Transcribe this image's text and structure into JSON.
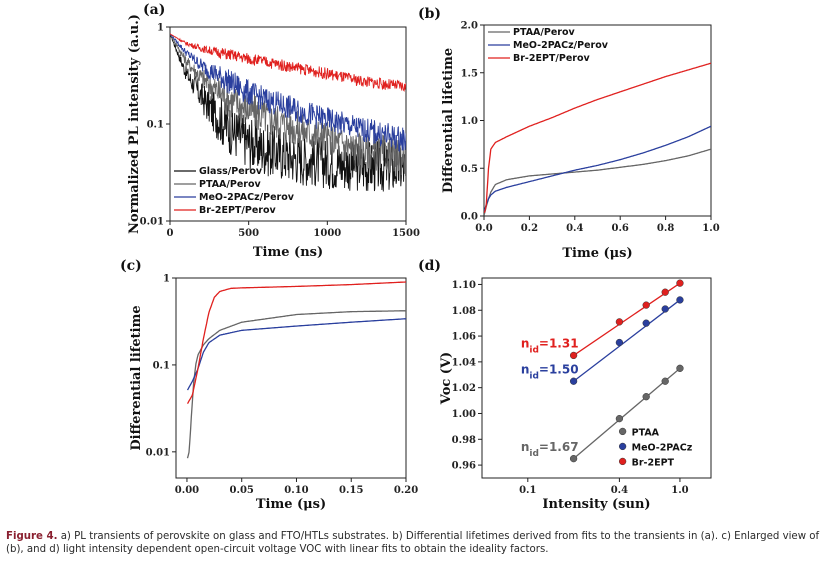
{
  "caption": {
    "label": "Figure 4.",
    "text": "a) PL transients of perovskite on glass and FTO/HTLs substrates. b) Differential lifetimes derived from fits to the transients in (a). c) Enlarged view of (b), and d) light intensity dependent open-circuit voltage VOC with linear fits to obtain the ideality factors."
  },
  "colors": {
    "glass": "#111111",
    "ptaa": "#666666",
    "meo": "#2a3f9e",
    "br": "#e0201e"
  },
  "chart_data": [
    {
      "panel": "(a)",
      "type": "line",
      "xlabel": "Time (ns)",
      "ylabel": "Normalized PL intensity (a.u.)",
      "xlim": [
        0,
        1500
      ],
      "ylim": [
        0.01,
        1
      ],
      "yscale": "log",
      "xticks": [
        "0",
        "500",
        "1000",
        "1500"
      ],
      "yticks": [
        "0.01",
        "0.1",
        "1"
      ],
      "legend_position": "bottom-left",
      "series": [
        {
          "name": "Glass/Perov",
          "color": "#111111",
          "x": [
            0,
            100,
            200,
            300,
            400,
            500,
            600,
            800,
            1000,
            1200,
            1500
          ],
          "y": [
            0.85,
            0.34,
            0.19,
            0.12,
            0.085,
            0.065,
            0.055,
            0.045,
            0.04,
            0.037,
            0.035
          ]
        },
        {
          "name": "PTAA/Perov",
          "color": "#666666",
          "x": [
            0,
            100,
            200,
            300,
            400,
            500,
            600,
            800,
            1000,
            1200,
            1500
          ],
          "y": [
            0.85,
            0.45,
            0.3,
            0.22,
            0.17,
            0.14,
            0.12,
            0.09,
            0.07,
            0.055,
            0.045
          ]
        },
        {
          "name": "MeO-2PACz/Perov",
          "color": "#2a3f9e",
          "x": [
            0,
            100,
            200,
            300,
            400,
            500,
            600,
            800,
            1000,
            1200,
            1500
          ],
          "y": [
            0.85,
            0.55,
            0.4,
            0.32,
            0.26,
            0.21,
            0.18,
            0.14,
            0.11,
            0.09,
            0.068
          ]
        },
        {
          "name": "Br-2EPT/Perov",
          "color": "#e0201e",
          "x": [
            0,
            100,
            200,
            300,
            400,
            500,
            600,
            800,
            1000,
            1200,
            1500
          ],
          "y": [
            0.85,
            0.68,
            0.6,
            0.55,
            0.51,
            0.47,
            0.44,
            0.38,
            0.33,
            0.28,
            0.24
          ]
        }
      ]
    },
    {
      "panel": "(b)",
      "type": "line",
      "xlabel": "Time (μs)",
      "ylabel": "Differential lifetime",
      "xlim": [
        0,
        1.0
      ],
      "ylim": [
        0,
        2.0
      ],
      "xticks": [
        "0.0",
        "0.2",
        "0.4",
        "0.6",
        "0.8",
        "1.0"
      ],
      "yticks": [
        "0.0",
        "0.5",
        "1.0",
        "1.5",
        "2.0"
      ],
      "legend_position": "top-left",
      "series": [
        {
          "name": "PTAA/Perov",
          "color": "#666666",
          "x": [
            0,
            0.005,
            0.01,
            0.02,
            0.03,
            0.05,
            0.1,
            0.2,
            0.3,
            0.4,
            0.5,
            0.6,
            0.7,
            0.8,
            0.9,
            1.0
          ],
          "y": [
            0.008,
            0.05,
            0.1,
            0.18,
            0.25,
            0.33,
            0.38,
            0.42,
            0.44,
            0.46,
            0.48,
            0.51,
            0.54,
            0.58,
            0.63,
            0.7
          ]
        },
        {
          "name": "MeO-2PACz/Perov",
          "color": "#2a3f9e",
          "x": [
            0,
            0.005,
            0.01,
            0.02,
            0.03,
            0.05,
            0.1,
            0.2,
            0.3,
            0.4,
            0.5,
            0.6,
            0.7,
            0.8,
            0.9,
            1.0
          ],
          "y": [
            0.05,
            0.08,
            0.12,
            0.18,
            0.22,
            0.26,
            0.3,
            0.36,
            0.42,
            0.48,
            0.53,
            0.59,
            0.66,
            0.74,
            0.83,
            0.94
          ]
        },
        {
          "name": "Br-2EPT/Perov",
          "color": "#e0201e",
          "x": [
            0,
            0.005,
            0.01,
            0.02,
            0.03,
            0.05,
            0.1,
            0.2,
            0.3,
            0.4,
            0.5,
            0.6,
            0.7,
            0.8,
            0.9,
            1.0
          ],
          "y": [
            0.035,
            0.05,
            0.12,
            0.5,
            0.7,
            0.77,
            0.83,
            0.94,
            1.03,
            1.13,
            1.22,
            1.3,
            1.38,
            1.46,
            1.53,
            1.6
          ]
        }
      ]
    },
    {
      "panel": "(c)",
      "type": "line",
      "xlabel": "Time (μs)",
      "ylabel": "Differential lifetime",
      "xlim": [
        -0.01,
        0.2
      ],
      "ylim": [
        0.005,
        1
      ],
      "yscale": "log",
      "xticks": [
        "0.00",
        "0.05",
        "0.10",
        "0.15",
        "0.20"
      ],
      "yticks": [
        "0.01",
        "0.1",
        "1"
      ],
      "series": [
        {
          "name": "PTAA/Perov",
          "color": "#666666",
          "x": [
            0,
            0.002,
            0.004,
            0.006,
            0.008,
            0.01,
            0.015,
            0.02,
            0.03,
            0.05,
            0.1,
            0.15,
            0.2
          ],
          "y": [
            0.008,
            0.01,
            0.025,
            0.06,
            0.1,
            0.13,
            0.17,
            0.2,
            0.25,
            0.31,
            0.38,
            0.41,
            0.42
          ]
        },
        {
          "name": "MeO-2PACz/Perov",
          "color": "#2a3f9e",
          "x": [
            0,
            0.005,
            0.01,
            0.015,
            0.02,
            0.03,
            0.05,
            0.1,
            0.15,
            0.2
          ],
          "y": [
            0.05,
            0.065,
            0.09,
            0.14,
            0.18,
            0.22,
            0.25,
            0.28,
            0.31,
            0.34
          ]
        },
        {
          "name": "Br-2EPT/Perov",
          "color": "#e0201e",
          "x": [
            0,
            0.005,
            0.01,
            0.015,
            0.02,
            0.025,
            0.03,
            0.04,
            0.05,
            0.1,
            0.15,
            0.2
          ],
          "y": [
            0.035,
            0.045,
            0.09,
            0.2,
            0.4,
            0.6,
            0.7,
            0.76,
            0.77,
            0.8,
            0.84,
            0.9
          ]
        }
      ]
    },
    {
      "panel": "(d)",
      "type": "scatter",
      "xlabel": "Intensity (sun)",
      "ylabel": "Voc (V)",
      "xscale": "log",
      "xlim": [
        0.05,
        1.6
      ],
      "ylim": [
        0.95,
        1.105
      ],
      "xticks": [
        "0.1",
        "0.4",
        "1.0"
      ],
      "yticks": [
        "0.96",
        "0.98",
        "1.00",
        "1.02",
        "1.04",
        "1.06",
        "1.08",
        "1.10"
      ],
      "legend_position": "bottom-right",
      "series": [
        {
          "name": "PTAA",
          "color": "#666666",
          "annotation": "n<sub>id</sub>=1.67",
          "x": [
            0.2,
            0.4,
            0.6,
            0.8,
            1.0
          ],
          "y": [
            0.965,
            0.996,
            1.013,
            1.025,
            1.035
          ]
        },
        {
          "name": "MeO-2PACz",
          "color": "#2a3f9e",
          "annotation": "n<sub>id</sub>=1.50",
          "x": [
            0.2,
            0.4,
            0.6,
            0.8,
            1.0
          ],
          "y": [
            1.025,
            1.055,
            1.07,
            1.081,
            1.088
          ]
        },
        {
          "name": "Br-2EPT",
          "color": "#e0201e",
          "annotation": "n<sub>id</sub>=1.31",
          "x": [
            0.2,
            0.4,
            0.6,
            0.8,
            1.0
          ],
          "y": [
            1.045,
            1.071,
            1.084,
            1.094,
            1.101
          ]
        }
      ]
    }
  ]
}
